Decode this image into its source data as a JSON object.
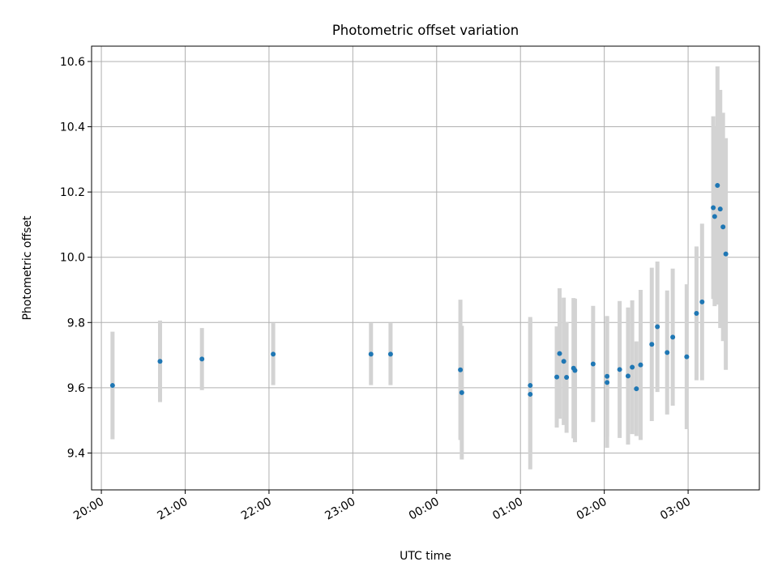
{
  "chart_data": {
    "type": "scatter",
    "title": "Photometric offset variation",
    "xlabel": "UTC time",
    "ylabel": "Photometric offset",
    "xlim": [
      "19:53",
      "03:51"
    ],
    "ylim": [
      9.287,
      10.647
    ],
    "x_ticks": [
      "20:00",
      "21:00",
      "22:00",
      "23:00",
      "00:00",
      "01:00",
      "02:00",
      "03:00"
    ],
    "y_ticks": [
      "9.4",
      "9.6",
      "9.8",
      "10.0",
      "10.2",
      "10.4",
      "10.6"
    ],
    "grid": true,
    "marker_color": "#1f77b4",
    "errorbar_color": "#d3d3d3",
    "points": [
      {
        "t": "20:08",
        "y": 9.607,
        "err": 0.165
      },
      {
        "t": "20:42",
        "y": 9.681,
        "err": 0.125
      },
      {
        "t": "21:12",
        "y": 9.688,
        "err": 0.095
      },
      {
        "t": "22:03",
        "y": 9.703,
        "err": 0.095
      },
      {
        "t": "23:13",
        "y": 9.703,
        "err": 0.095
      },
      {
        "t": "23:27",
        "y": 9.703,
        "err": 0.095
      },
      {
        "t": "00:17",
        "y": 9.655,
        "err": 0.215
      },
      {
        "t": "00:18",
        "y": 9.585,
        "err": 0.205
      },
      {
        "t": "01:07",
        "y": 9.607,
        "err": 0.21
      },
      {
        "t": "01:07",
        "y": 9.58,
        "err": 0.23
      },
      {
        "t": "01:26",
        "y": 9.633,
        "err": 0.155
      },
      {
        "t": "01:28",
        "y": 9.705,
        "err": 0.2
      },
      {
        "t": "01:31",
        "y": 9.681,
        "err": 0.195
      },
      {
        "t": "01:33",
        "y": 9.632,
        "err": 0.17
      },
      {
        "t": "01:38",
        "y": 9.66,
        "err": 0.215
      },
      {
        "t": "01:39",
        "y": 9.653,
        "err": 0.22
      },
      {
        "t": "01:52",
        "y": 9.673,
        "err": 0.178
      },
      {
        "t": "02:02",
        "y": 9.616,
        "err": 0.2
      },
      {
        "t": "02:02",
        "y": 9.635,
        "err": 0.185
      },
      {
        "t": "02:11",
        "y": 9.656,
        "err": 0.21
      },
      {
        "t": "02:17",
        "y": 9.636,
        "err": 0.21
      },
      {
        "t": "02:20",
        "y": 9.663,
        "err": 0.205
      },
      {
        "t": "02:23",
        "y": 9.597,
        "err": 0.145
      },
      {
        "t": "02:26",
        "y": 9.67,
        "err": 0.23
      },
      {
        "t": "02:34",
        "y": 9.733,
        "err": 0.235
      },
      {
        "t": "02:38",
        "y": 9.787,
        "err": 0.2
      },
      {
        "t": "02:45",
        "y": 9.708,
        "err": 0.19
      },
      {
        "t": "02:49",
        "y": 9.755,
        "err": 0.21
      },
      {
        "t": "02:59",
        "y": 9.695,
        "err": 0.222
      },
      {
        "t": "03:06",
        "y": 9.828,
        "err": 0.205
      },
      {
        "t": "03:10",
        "y": 9.863,
        "err": 0.24
      },
      {
        "t": "03:18",
        "y": 10.152,
        "err": 0.28
      },
      {
        "t": "03:19",
        "y": 10.125,
        "err": 0.275
      },
      {
        "t": "03:21",
        "y": 10.22,
        "err": 0.365
      },
      {
        "t": "03:23",
        "y": 10.148,
        "err": 0.365
      },
      {
        "t": "03:25",
        "y": 10.093,
        "err": 0.35
      },
      {
        "t": "03:27",
        "y": 10.01,
        "err": 0.355
      }
    ]
  }
}
